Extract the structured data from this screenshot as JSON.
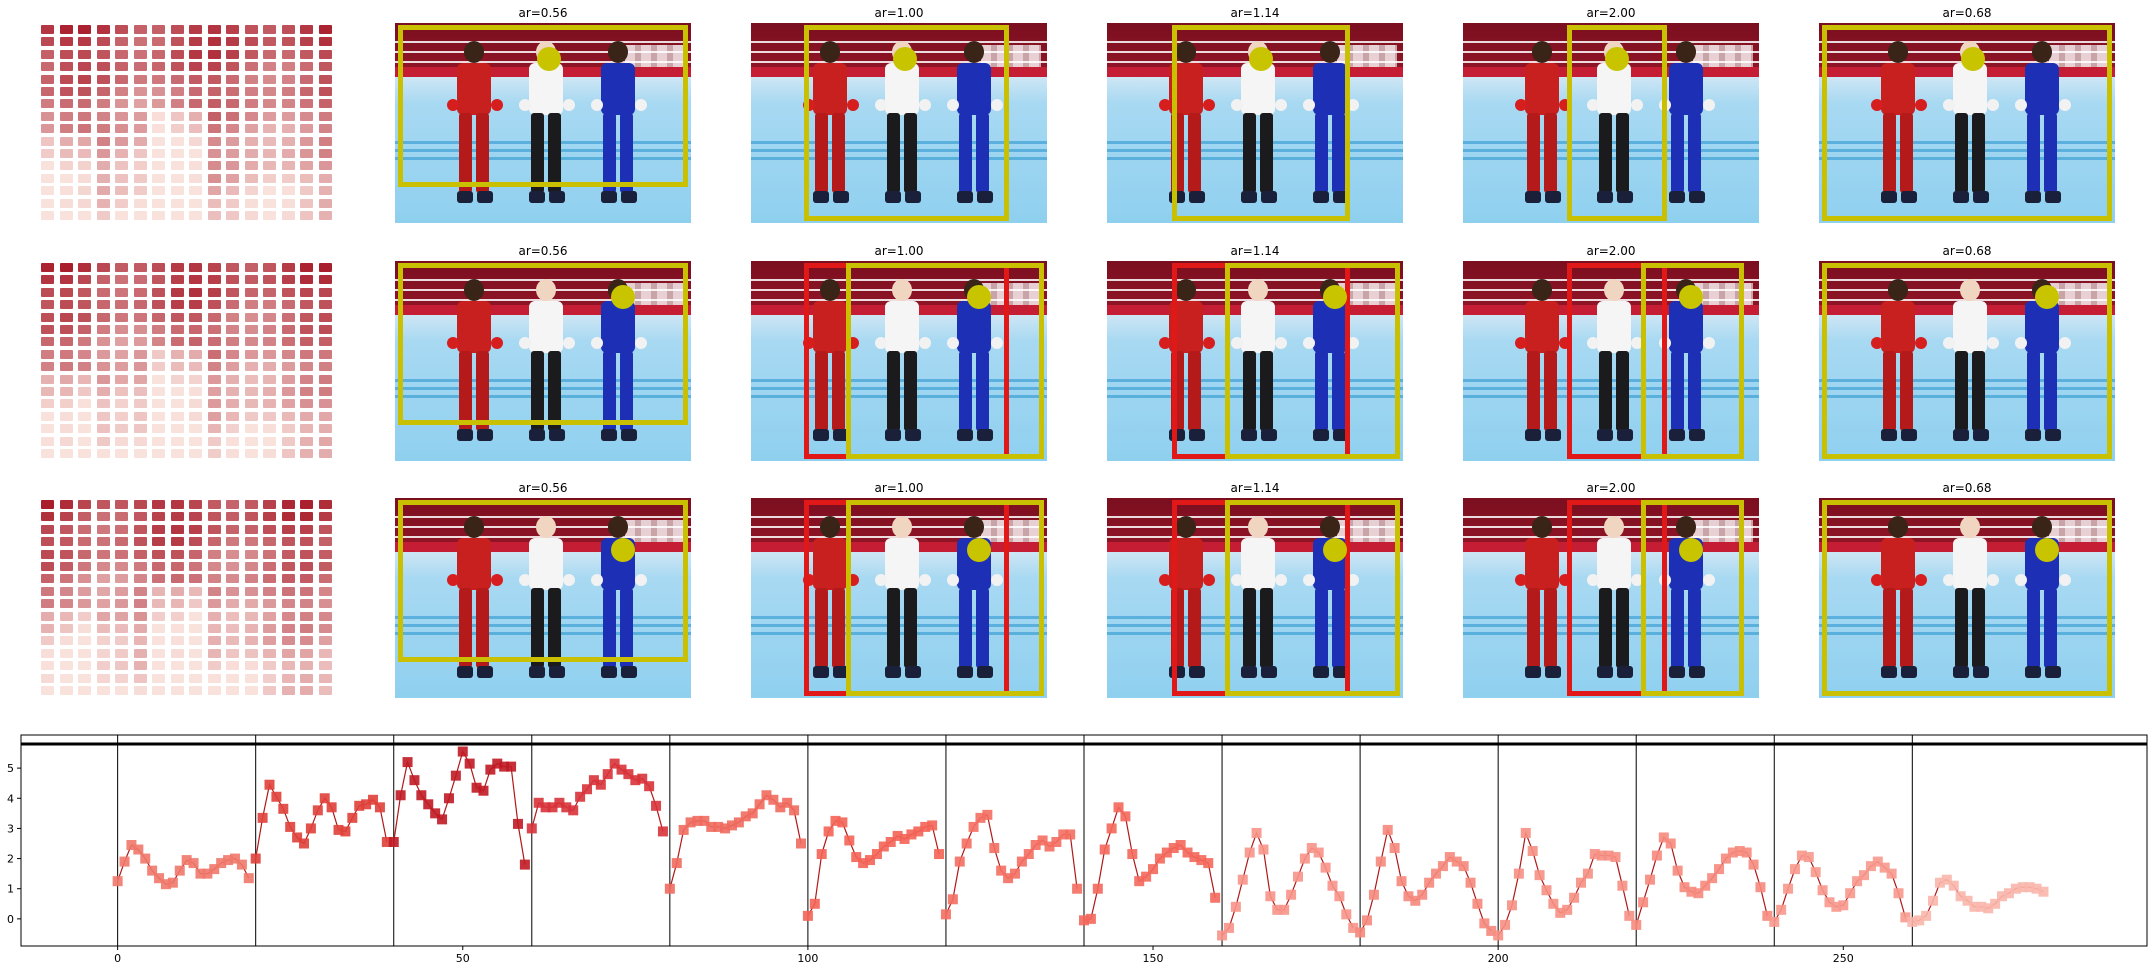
{
  "panel_rows": [
    {
      "heatmap_name": "attention-heatmap-row-1",
      "panels": [
        {
          "title": "ar=0.56",
          "boxes": [
            {
              "color": "#c8c000",
              "l": 0.01,
              "t": 0.01,
              "r": 0.99,
              "b": 0.82
            }
          ],
          "dot": [
            0.52,
            0.18
          ]
        },
        {
          "title": "ar=1.00",
          "boxes": [
            {
              "color": "#c8c000",
              "l": 0.18,
              "t": 0.01,
              "r": 0.87,
              "b": 0.99
            }
          ],
          "dot": [
            0.52,
            0.18
          ]
        },
        {
          "title": "ar=1.14",
          "boxes": [
            {
              "color": "#c8c000",
              "l": 0.22,
              "t": 0.01,
              "r": 0.82,
              "b": 0.99
            }
          ],
          "dot": [
            0.52,
            0.18
          ]
        },
        {
          "title": "ar=2.00",
          "boxes": [
            {
              "color": "#c8c000",
              "l": 0.35,
              "t": 0.01,
              "r": 0.69,
              "b": 0.99
            }
          ],
          "dot": [
            0.52,
            0.18
          ]
        },
        {
          "title": "ar=0.68",
          "boxes": [
            {
              "color": "#c8c000",
              "l": 0.01,
              "t": 0.01,
              "r": 0.99,
              "b": 0.99
            }
          ],
          "dot": [
            0.52,
            0.18
          ]
        }
      ]
    },
    {
      "heatmap_name": "attention-heatmap-row-2",
      "panels": [
        {
          "title": "ar=0.56",
          "boxes": [
            {
              "color": "#c8c000",
              "l": 0.01,
              "t": 0.01,
              "r": 0.99,
              "b": 0.82
            }
          ],
          "dot": [
            0.77,
            0.18
          ]
        },
        {
          "title": "ar=1.00",
          "boxes": [
            {
              "color": "#e01818",
              "l": 0.18,
              "t": 0.01,
              "r": 0.87,
              "b": 0.99
            },
            {
              "color": "#c8c000",
              "l": 0.32,
              "t": 0.01,
              "r": 0.99,
              "b": 0.99
            }
          ],
          "dot": [
            0.77,
            0.18
          ]
        },
        {
          "title": "ar=1.14",
          "boxes": [
            {
              "color": "#e01818",
              "l": 0.22,
              "t": 0.01,
              "r": 0.82,
              "b": 0.99
            },
            {
              "color": "#c8c000",
              "l": 0.4,
              "t": 0.01,
              "r": 0.99,
              "b": 0.99
            }
          ],
          "dot": [
            0.77,
            0.18
          ]
        },
        {
          "title": "ar=2.00",
          "boxes": [
            {
              "color": "#e01818",
              "l": 0.35,
              "t": 0.01,
              "r": 0.69,
              "b": 0.99
            },
            {
              "color": "#c8c000",
              "l": 0.6,
              "t": 0.01,
              "r": 0.95,
              "b": 0.99
            }
          ],
          "dot": [
            0.77,
            0.18
          ]
        },
        {
          "title": "ar=0.68",
          "boxes": [
            {
              "color": "#c8c000",
              "l": 0.01,
              "t": 0.01,
              "r": 0.99,
              "b": 0.99
            }
          ],
          "dot": [
            0.77,
            0.18
          ]
        }
      ]
    },
    {
      "heatmap_name": "attention-heatmap-row-3",
      "panels": [
        {
          "title": "ar=0.56",
          "boxes": [
            {
              "color": "#c8c000",
              "l": 0.01,
              "t": 0.01,
              "r": 0.99,
              "b": 0.82
            }
          ],
          "dot": [
            0.77,
            0.26
          ]
        },
        {
          "title": "ar=1.00",
          "boxes": [
            {
              "color": "#e01818",
              "l": 0.18,
              "t": 0.01,
              "r": 0.87,
              "b": 0.99
            },
            {
              "color": "#c8c000",
              "l": 0.32,
              "t": 0.01,
              "r": 0.99,
              "b": 0.99
            }
          ],
          "dot": [
            0.77,
            0.26
          ]
        },
        {
          "title": "ar=1.14",
          "boxes": [
            {
              "color": "#e01818",
              "l": 0.22,
              "t": 0.01,
              "r": 0.82,
              "b": 0.99
            },
            {
              "color": "#c8c000",
              "l": 0.4,
              "t": 0.01,
              "r": 0.99,
              "b": 0.99
            }
          ],
          "dot": [
            0.77,
            0.26
          ]
        },
        {
          "title": "ar=2.00",
          "boxes": [
            {
              "color": "#e01818",
              "l": 0.35,
              "t": 0.01,
              "r": 0.69,
              "b": 0.99
            },
            {
              "color": "#c8c000",
              "l": 0.6,
              "t": 0.01,
              "r": 0.95,
              "b": 0.99
            }
          ],
          "dot": [
            0.77,
            0.26
          ]
        },
        {
          "title": "ar=0.68",
          "boxes": [
            {
              "color": "#c8c000",
              "l": 0.01,
              "t": 0.01,
              "r": 0.99,
              "b": 0.99
            }
          ],
          "dot": [
            0.77,
            0.26
          ]
        }
      ]
    }
  ],
  "chart_data": {
    "type": "line",
    "title": "",
    "xlabel": "",
    "ylabel": "",
    "xlim": [
      -14,
      294
    ],
    "ylim": [
      -0.9,
      5.8
    ],
    "xticks": [
      0,
      50,
      100,
      150,
      200,
      250
    ],
    "yticks": [
      0,
      1,
      2,
      3,
      4,
      5
    ],
    "segment_boundaries": [
      0,
      20,
      40,
      60,
      80,
      100,
      120,
      140,
      160,
      180,
      200,
      220,
      240,
      260
    ],
    "grid": false,
    "legend": "none",
    "line_color": "#b01818",
    "marker": "square",
    "series": [
      {
        "x_start": 0,
        "values": [
          1.25,
          1.9,
          2.45,
          2.3,
          2.0,
          1.6,
          1.35,
          1.15,
          1.2,
          1.6,
          1.95,
          1.85,
          1.5,
          1.5,
          1.65,
          1.85,
          1.95,
          2.0,
          1.8,
          1.35,
          2.0,
          3.35,
          4.45,
          4.05,
          3.65,
          3.05,
          2.7,
          2.5,
          3.0,
          3.6,
          4.0,
          3.7,
          2.95,
          2.9,
          3.35,
          3.75,
          3.8,
          3.95,
          3.7,
          2.55,
          2.55,
          4.1,
          5.2,
          4.6,
          4.1,
          3.8,
          3.5,
          3.3,
          4.0,
          4.75,
          5.55,
          5.15,
          4.35,
          4.25,
          4.95,
          5.15,
          5.05,
          5.05,
          3.15,
          1.8,
          3.0,
          3.85,
          3.7,
          3.7,
          3.85,
          3.7,
          3.6,
          4.05,
          4.3,
          4.6,
          4.45,
          4.8,
          5.15,
          4.95,
          4.8,
          4.6,
          4.65,
          4.4,
          3.75,
          2.9,
          1.0,
          1.85,
          2.95,
          3.2,
          3.25,
          3.25,
          3.05,
          3.05,
          3.0,
          3.1,
          3.2,
          3.4,
          3.5,
          3.8,
          4.1,
          3.95,
          3.7,
          3.85,
          3.6,
          2.5,
          0.1,
          0.5,
          2.15,
          2.9,
          3.25,
          3.2,
          2.6,
          2.05,
          1.85,
          1.95,
          2.15,
          2.4,
          2.55,
          2.75,
          2.65,
          2.8,
          2.9,
          3.05,
          3.1,
          2.15,
          0.15,
          0.65,
          1.9,
          2.5,
          3.05,
          3.35,
          3.45,
          2.35,
          1.6,
          1.35,
          1.5,
          1.9,
          2.15,
          2.45,
          2.6,
          2.4,
          2.55,
          2.8,
          2.8,
          1.0,
          -0.05,
          0.0,
          1.0,
          2.3,
          3.0,
          3.7,
          3.4,
          2.15,
          1.25,
          1.4,
          1.65,
          2.0,
          2.2,
          2.35,
          2.45,
          2.2,
          2.05,
          1.95,
          1.85,
          0.7,
          -0.55,
          -0.3,
          0.4,
          1.3,
          2.2,
          2.85,
          2.3,
          0.75,
          0.3,
          0.3,
          0.8,
          1.4,
          2.0,
          2.35,
          2.2,
          1.7,
          1.1,
          0.75,
          0.15,
          -0.3,
          -0.45,
          -0.05,
          0.8,
          1.9,
          2.95,
          2.35,
          1.25,
          0.75,
          0.6,
          0.8,
          1.2,
          1.5,
          1.75,
          2.05,
          1.9,
          1.75,
          1.2,
          0.5,
          -0.15,
          -0.4,
          -0.55,
          -0.2,
          0.45,
          1.5,
          2.85,
          2.25,
          1.45,
          0.95,
          0.5,
          0.2,
          0.3,
          0.7,
          1.2,
          1.5,
          2.15,
          2.1,
          2.1,
          2.05,
          1.1,
          0.1,
          -0.2,
          0.55,
          1.3,
          2.1,
          2.7,
          2.5,
          1.6,
          1.05,
          0.9,
          0.85,
          1.1,
          1.35,
          1.65,
          2.0,
          2.2,
          2.25,
          2.2,
          1.8,
          1.05,
          0.1,
          -0.1,
          0.3,
          1.0,
          1.65,
          2.1,
          2.05,
          1.55,
          0.95,
          0.55,
          0.4,
          0.45,
          0.85,
          1.25,
          1.45,
          1.75,
          1.9,
          1.7,
          1.5,
          0.85,
          0.05,
          -0.1,
          -0.05,
          0.1,
          0.6,
          1.2,
          1.3,
          1.1,
          0.75,
          0.6,
          0.4,
          0.4,
          0.35,
          0.5,
          0.75,
          0.85,
          1.0,
          1.05,
          1.05,
          1.0,
          0.9
        ]
      }
    ]
  }
}
